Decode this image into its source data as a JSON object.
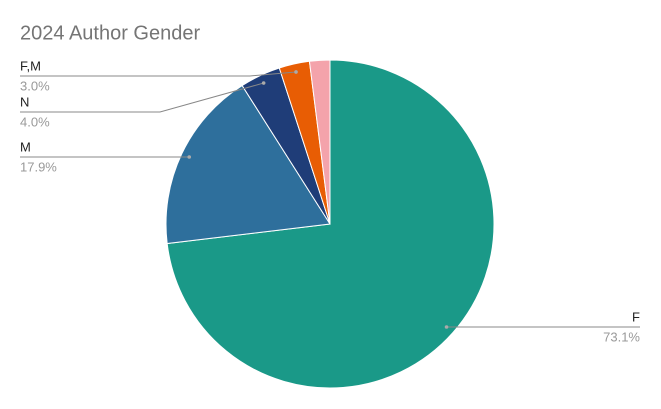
{
  "chart_data": {
    "type": "pie",
    "title": "2024 Author Gender",
    "categories": [
      "F",
      "M",
      "N",
      "F,M",
      null
    ],
    "values": [
      73.1,
      17.9,
      4.0,
      3.0,
      2.0
    ],
    "value_labels": [
      "73.1%",
      "17.9%",
      "4.0%",
      "3.0%",
      null
    ],
    "colors": [
      "#1a9988",
      "#2e6f9c",
      "#1f3d78",
      "#e85d04",
      "#f4a3ab"
    ]
  }
}
